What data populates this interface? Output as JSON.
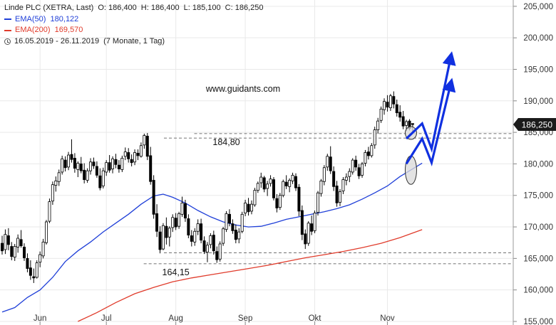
{
  "legend": {
    "instrument": "Linde PLC (XETRA, Last)",
    "open_label": "O:",
    "open": "186,400",
    "high_label": "H:",
    "high": "186,400",
    "low_label": "L:",
    "low": "185,100",
    "close_label": "C:",
    "close": "186,250",
    "ema50_label": "EMA(50)",
    "ema50_value": "180,122",
    "ema200_label": "EMA(200)",
    "ema200_value": "169,570",
    "period": "16.05.2019 - 26.11.2019",
    "period_detail": "(7 Monate, 1 Tag)"
  },
  "watermark": "www.guidants.com",
  "price_tag": "186,250",
  "colors": {
    "candle_up": "#ffffff",
    "candle_down": "#000000",
    "wick": "#000000",
    "ema50": "#1f3fd8",
    "ema200": "#e03b2b",
    "arrows": "#1030e0",
    "price_tag_bg": "#1b1b1b",
    "price_tag_text": "#ffffff",
    "grid": "#e9e9e9",
    "axis_text": "#333333"
  },
  "chart_data": {
    "type": "candlestick",
    "ylim": [
      155,
      206
    ],
    "y_ticks": [
      "155,000",
      "160,000",
      "165,000",
      "170,000",
      "175,000",
      "180,000",
      "185,000",
      "190,000",
      "195,000",
      "200,000",
      "205,000"
    ],
    "y_tick_values": [
      155,
      160,
      165,
      170,
      175,
      180,
      185,
      190,
      195,
      200,
      205
    ],
    "grid": true,
    "x_tick_labels": [
      "Jun",
      "Jul",
      "Aug",
      "Sep",
      "Okt",
      "Nov"
    ],
    "x_tick_index": [
      12,
      33,
      55,
      77,
      99,
      122
    ],
    "candles": [
      [
        167.4,
        168.6,
        165.6,
        166.2
      ],
      [
        166.4,
        169.6,
        165.7,
        168.8
      ],
      [
        168.6,
        169.8,
        166.3,
        167.2
      ],
      [
        166.9,
        167.6,
        164.7,
        165.3
      ],
      [
        165.2,
        167.3,
        164.6,
        166.9
      ],
      [
        166.8,
        168.8,
        165.9,
        168.2
      ],
      [
        168.0,
        169.5,
        166.7,
        167.0
      ],
      [
        166.8,
        167.4,
        164.6,
        165.1
      ],
      [
        165.0,
        165.8,
        162.8,
        163.4
      ],
      [
        163.5,
        164.7,
        161.6,
        162.3
      ],
      [
        162.1,
        163.4,
        161.1,
        161.9
      ],
      [
        162.0,
        164.7,
        161.8,
        164.3
      ],
      [
        164.4,
        166.1,
        163.6,
        165.6
      ],
      [
        165.4,
        168.1,
        165.0,
        167.6
      ],
      [
        167.5,
        171.1,
        167.2,
        170.8
      ],
      [
        170.9,
        174.5,
        170.6,
        174.0
      ],
      [
        174.1,
        177.2,
        173.5,
        176.7
      ],
      [
        176.6,
        178.0,
        175.6,
        177.3
      ],
      [
        177.2,
        179.1,
        176.5,
        178.6
      ],
      [
        178.7,
        181.3,
        178.3,
        180.8
      ],
      [
        180.6,
        181.2,
        178.8,
        179.4
      ],
      [
        179.5,
        181.9,
        179.0,
        181.4
      ],
      [
        181.5,
        183.9,
        180.2,
        180.7
      ],
      [
        180.9,
        181.7,
        178.6,
        179.3
      ],
      [
        179.1,
        180.4,
        177.9,
        180.1
      ],
      [
        180.0,
        181.1,
        178.5,
        178.9
      ],
      [
        179.0,
        180.1,
        176.9,
        177.5
      ],
      [
        177.4,
        179.3,
        177.0,
        178.9
      ],
      [
        178.9,
        180.9,
        178.3,
        180.3
      ],
      [
        180.3,
        181.0,
        179.2,
        179.7
      ],
      [
        179.6,
        180.4,
        177.8,
        178.2
      ],
      [
        178.1,
        179.3,
        175.8,
        176.2
      ],
      [
        176.5,
        179.4,
        176.1,
        178.9
      ],
      [
        178.7,
        180.6,
        178.1,
        180.2
      ],
      [
        180.2,
        181.4,
        178.6,
        179.0
      ],
      [
        179.2,
        181.2,
        178.5,
        180.8
      ],
      [
        180.7,
        181.6,
        179.3,
        179.9
      ],
      [
        179.8,
        180.6,
        178.6,
        179.2
      ],
      [
        179.1,
        181.3,
        178.7,
        180.9
      ],
      [
        181.2,
        182.6,
        180.6,
        181.9
      ],
      [
        181.8,
        182.5,
        180.2,
        180.8
      ],
      [
        180.7,
        181.5,
        179.6,
        180.2
      ],
      [
        180.3,
        182.3,
        179.8,
        181.8
      ],
      [
        181.7,
        182.3,
        180.6,
        181.3
      ],
      [
        181.2,
        183.4,
        181.0,
        182.9
      ],
      [
        183.0,
        184.8,
        182.4,
        184.5
      ],
      [
        184.4,
        184.9,
        180.6,
        181.2
      ],
      [
        181.3,
        182.7,
        176.7,
        177.2
      ],
      [
        177.4,
        178.2,
        171.3,
        172.0
      ],
      [
        172.1,
        173.6,
        168.4,
        169.3
      ],
      [
        169.2,
        170.1,
        165.8,
        166.4
      ],
      [
        166.5,
        170.6,
        166.3,
        170.2
      ],
      [
        170.1,
        171.5,
        167.2,
        168.3
      ],
      [
        168.4,
        170.1,
        166.9,
        169.8
      ],
      [
        169.9,
        172.0,
        169.2,
        171.5
      ],
      [
        171.4,
        172.2,
        169.5,
        170.0
      ],
      [
        170.1,
        172.4,
        169.7,
        172.1
      ],
      [
        172.0,
        174.8,
        171.6,
        173.8
      ],
      [
        173.7,
        174.3,
        170.8,
        171.4
      ],
      [
        171.3,
        172.0,
        168.2,
        168.7
      ],
      [
        168.6,
        169.5,
        166.9,
        167.7
      ],
      [
        167.6,
        169.8,
        167.0,
        169.3
      ],
      [
        169.3,
        171.2,
        168.7,
        170.5
      ],
      [
        170.5,
        171.3,
        167.4,
        167.9
      ],
      [
        167.8,
        168.5,
        165.7,
        166.1
      ],
      [
        166.0,
        167.6,
        164.4,
        167.1
      ],
      [
        167.2,
        169.0,
        166.6,
        168.6
      ],
      [
        168.7,
        169.4,
        165.6,
        166.2
      ],
      [
        166.1,
        166.9,
        164.3,
        164.8
      ],
      [
        164.9,
        167.7,
        164.5,
        167.3
      ],
      [
        167.4,
        170.0,
        167.0,
        169.7
      ],
      [
        169.6,
        172.5,
        169.2,
        172.1
      ],
      [
        172.0,
        172.8,
        170.1,
        170.6
      ],
      [
        170.5,
        171.2,
        168.9,
        169.4
      ],
      [
        169.5,
        170.4,
        167.4,
        168.0
      ],
      [
        168.1,
        169.8,
        167.4,
        169.2
      ],
      [
        169.3,
        172.4,
        169.0,
        172.0
      ],
      [
        172.2,
        174.3,
        171.7,
        173.8
      ],
      [
        173.6,
        174.6,
        171.8,
        172.4
      ],
      [
        172.5,
        174.2,
        172.0,
        173.6
      ],
      [
        173.5,
        176.2,
        173.2,
        175.8
      ],
      [
        175.8,
        177.2,
        175.4,
        176.9
      ],
      [
        177.0,
        178.6,
        176.2,
        177.9
      ],
      [
        177.8,
        178.1,
        175.5,
        176.0
      ],
      [
        176.1,
        177.3,
        174.9,
        176.8
      ],
      [
        176.9,
        178.2,
        176.4,
        177.6
      ],
      [
        177.5,
        177.9,
        174.2,
        174.6
      ],
      [
        174.5,
        175.2,
        172.3,
        173.0
      ],
      [
        173.1,
        175.4,
        172.7,
        175.0
      ],
      [
        175.0,
        177.5,
        174.7,
        177.2
      ],
      [
        177.1,
        178.2,
        176.0,
        176.5
      ],
      [
        176.4,
        177.7,
        175.5,
        177.4
      ],
      [
        177.3,
        178.6,
        176.8,
        178.2
      ],
      [
        178.0,
        178.5,
        175.7,
        176.2
      ],
      [
        176.3,
        176.8,
        171.7,
        172.5
      ],
      [
        172.6,
        173.4,
        167.9,
        168.8
      ],
      [
        168.9,
        169.6,
        166.5,
        167.3
      ],
      [
        167.4,
        170.9,
        167.0,
        170.6
      ],
      [
        170.5,
        171.8,
        168.7,
        169.3
      ],
      [
        169.4,
        172.6,
        169.0,
        172.2
      ],
      [
        172.3,
        175.7,
        171.8,
        175.4
      ],
      [
        175.3,
        177.6,
        174.8,
        177.3
      ],
      [
        177.2,
        179.8,
        176.6,
        179.4
      ],
      [
        179.5,
        181.6,
        178.9,
        181.2
      ],
      [
        181.1,
        182.8,
        178.4,
        178.9
      ],
      [
        178.8,
        179.6,
        175.7,
        176.4
      ],
      [
        176.5,
        177.3,
        173.2,
        173.8
      ],
      [
        173.9,
        176.0,
        173.3,
        175.6
      ],
      [
        175.7,
        177.9,
        175.2,
        177.5
      ],
      [
        177.4,
        178.5,
        176.6,
        177.9
      ],
      [
        178.0,
        179.3,
        177.1,
        178.8
      ],
      [
        178.7,
        180.9,
        178.3,
        180.6
      ],
      [
        180.6,
        181.3,
        178.9,
        179.5
      ],
      [
        179.4,
        180.0,
        177.6,
        178.1
      ],
      [
        178.2,
        180.3,
        177.8,
        180.0
      ],
      [
        180.1,
        182.2,
        179.6,
        181.8
      ],
      [
        181.9,
        182.7,
        180.7,
        181.3
      ],
      [
        181.3,
        183.3,
        181.0,
        182.9
      ],
      [
        183.0,
        185.9,
        182.4,
        185.4
      ],
      [
        185.4,
        187.3,
        184.8,
        186.8
      ],
      [
        186.9,
        189.1,
        186.5,
        188.7
      ],
      [
        188.6,
        190.4,
        187.8,
        189.9
      ],
      [
        189.8,
        190.9,
        188.3,
        189.0
      ],
      [
        188.9,
        191.1,
        188.4,
        190.8
      ],
      [
        190.7,
        191.5,
        188.8,
        189.5
      ],
      [
        189.4,
        190.2,
        187.5,
        188.1
      ],
      [
        188.2,
        189.3,
        186.7,
        187.4
      ],
      [
        187.5,
        188.4,
        185.5,
        186.0
      ],
      [
        186.1,
        187.0,
        185.2,
        186.7
      ],
      [
        186.8,
        187.1,
        185.3,
        185.6
      ],
      [
        186.4,
        186.4,
        185.1,
        186.25
      ]
    ],
    "ema50": [
      [
        0,
        156.5
      ],
      [
        4,
        157.2
      ],
      [
        8,
        158.8
      ],
      [
        12,
        160.0
      ],
      [
        16,
        162.0
      ],
      [
        20,
        164.5
      ],
      [
        24,
        166.2
      ],
      [
        28,
        167.6
      ],
      [
        32,
        169.2
      ],
      [
        36,
        170.6
      ],
      [
        40,
        172.0
      ],
      [
        44,
        173.6
      ],
      [
        48,
        174.9
      ],
      [
        51,
        175.2
      ],
      [
        54,
        174.7
      ],
      [
        58,
        173.8
      ],
      [
        62,
        172.6
      ],
      [
        66,
        171.6
      ],
      [
        70,
        170.8
      ],
      [
        74,
        170.3
      ],
      [
        78,
        170.0
      ],
      [
        82,
        170.1
      ],
      [
        86,
        170.6
      ],
      [
        90,
        171.2
      ],
      [
        94,
        171.6
      ],
      [
        98,
        172.0
      ],
      [
        102,
        172.4
      ],
      [
        106,
        172.9
      ],
      [
        110,
        173.5
      ],
      [
        114,
        174.4
      ],
      [
        118,
        175.4
      ],
      [
        122,
        176.5
      ],
      [
        126,
        178.0
      ],
      [
        130,
        179.2
      ],
      [
        133,
        180.12
      ]
    ],
    "ema200": [
      [
        24,
        155.0
      ],
      [
        30,
        156.4
      ],
      [
        36,
        158.0
      ],
      [
        42,
        159.4
      ],
      [
        48,
        160.4
      ],
      [
        54,
        161.3
      ],
      [
        60,
        161.9
      ],
      [
        66,
        162.4
      ],
      [
        72,
        162.9
      ],
      [
        78,
        163.4
      ],
      [
        84,
        163.9
      ],
      [
        90,
        164.5
      ],
      [
        96,
        165.1
      ],
      [
        102,
        165.6
      ],
      [
        108,
        166.1
      ],
      [
        114,
        166.7
      ],
      [
        120,
        167.4
      ],
      [
        126,
        168.3
      ],
      [
        133,
        169.57
      ]
    ],
    "support_lines": [
      {
        "value": 184.8,
        "label": "184,80",
        "label_index": 71
      },
      {
        "value": 164.15,
        "label": "164,15",
        "label_index": 55
      },
      {
        "value": 165.9
      },
      {
        "value": 184.1
      }
    ],
    "projection_arrows": [
      [
        [
          128,
          184.0
        ],
        [
          133,
          186.4
        ],
        [
          136,
          182.4
        ],
        [
          142,
          196.8
        ]
      ],
      [
        [
          128,
          180.0
        ],
        [
          133,
          184.0
        ],
        [
          136,
          180.2
        ],
        [
          142,
          192.6
        ]
      ]
    ],
    "highlight_ellipses": [
      {
        "index": 129,
        "center": 184.9
      },
      {
        "index": 129,
        "center": 179.0
      }
    ]
  }
}
